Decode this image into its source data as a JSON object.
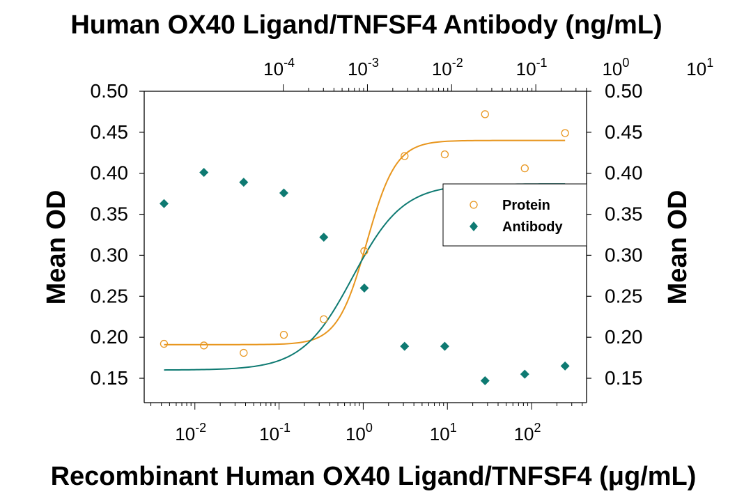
{
  "chart_data": {
    "type": "scatter",
    "title": "Human OX40 Ligand/TNFSF4 Antibody (ng/mL)",
    "xlabel": "Recombinant Human OX40 Ligand/TNFSF4 (μg/mL)",
    "ylabel": "Mean OD",
    "ylabel_right": "Mean OD",
    "x_scale": "log",
    "xlim": [
      0.0025,
      450
    ],
    "ylim": [
      0.12,
      0.5
    ],
    "y_ticks": [
      "0.50",
      "0.45",
      "0.40",
      "0.35",
      "0.30",
      "0.25",
      "0.20",
      "0.15"
    ],
    "y_tick_values": [
      0.5,
      0.45,
      0.4,
      0.35,
      0.3,
      0.25,
      0.2,
      0.15
    ],
    "x_ticks_bottom": [
      {
        "value": 0.01,
        "base": "10",
        "exp": "-2"
      },
      {
        "value": 0.1,
        "base": "10",
        "exp": "-1"
      },
      {
        "value": 1,
        "base": "10",
        "exp": "0"
      },
      {
        "value": 10,
        "base": "10",
        "exp": "1"
      },
      {
        "value": 100,
        "base": "10",
        "exp": "2"
      }
    ],
    "top_axis": {
      "label": "Human OX40 Ligand/TNFSF4 Antibody (ng/mL)",
      "x_scale": "log",
      "ticks": [
        {
          "value": 0.0001,
          "base": "10",
          "exp": "-4"
        },
        {
          "value": 0.001,
          "base": "10",
          "exp": "-3"
        },
        {
          "value": 0.01,
          "base": "10",
          "exp": "-2"
        },
        {
          "value": 0.1,
          "base": "10",
          "exp": "-1"
        },
        {
          "value": 1,
          "base": "10",
          "exp": "0"
        },
        {
          "value": 10,
          "base": "10",
          "exp": "1"
        }
      ]
    },
    "legend": {
      "position": "right",
      "entries": [
        "Protein",
        "Antibody"
      ]
    },
    "grid": false,
    "series": [
      {
        "name": "Protein",
        "marker": "open-circle",
        "color": "#e8961e",
        "points": [
          {
            "x": 0.0043,
            "y": 0.192
          },
          {
            "x": 0.0128,
            "y": 0.19
          },
          {
            "x": 0.038,
            "y": 0.181
          },
          {
            "x": 0.114,
            "y": 0.203
          },
          {
            "x": 0.34,
            "y": 0.222
          },
          {
            "x": 1.03,
            "y": 0.305
          },
          {
            "x": 3.1,
            "y": 0.421
          },
          {
            "x": 9.3,
            "y": 0.423
          },
          {
            "x": 28,
            "y": 0.472
          },
          {
            "x": 83,
            "y": 0.406
          },
          {
            "x": 250,
            "y": 0.449
          }
        ],
        "fit": {
          "bottom": 0.191,
          "top": 0.44,
          "ec50": 1.1,
          "hill": 2.5
        }
      },
      {
        "name": "Antibody",
        "marker": "filled-diamond",
        "color": "#0e7a72",
        "points": [
          {
            "x": 0.0043,
            "y": 0.363
          },
          {
            "x": 0.0128,
            "y": 0.401
          },
          {
            "x": 0.038,
            "y": 0.389
          },
          {
            "x": 0.114,
            "y": 0.376
          },
          {
            "x": 0.34,
            "y": 0.322
          },
          {
            "x": 1.03,
            "y": 0.26
          },
          {
            "x": 3.1,
            "y": 0.189
          },
          {
            "x": 9.3,
            "y": 0.189
          },
          {
            "x": 28,
            "y": 0.147
          },
          {
            "x": 83,
            "y": 0.155
          },
          {
            "x": 250,
            "y": 0.165
          }
        ],
        "fit": {
          "bottom": 0.16,
          "top": 0.387,
          "ec50": 0.75,
          "hill": 1.45
        }
      }
    ]
  }
}
